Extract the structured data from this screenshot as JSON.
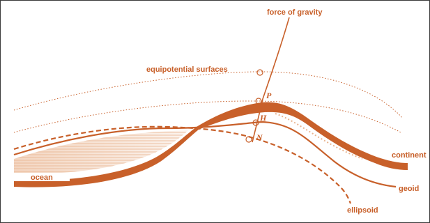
{
  "colors": {
    "ink": "#c8602a",
    "ink_light": "#d98a5c",
    "hatch": "#e9b48f",
    "frame": "#3a3a3a"
  },
  "labels": {
    "force_of_gravity": "force of gravity",
    "equipotential_surfaces": "equipotential surfaces",
    "continent": "continent",
    "geoid": "geoid",
    "ellipsoid": "ellipsoid",
    "ocean": "ocean"
  },
  "points": {
    "P": "P",
    "H": "H",
    "N": "N"
  }
}
